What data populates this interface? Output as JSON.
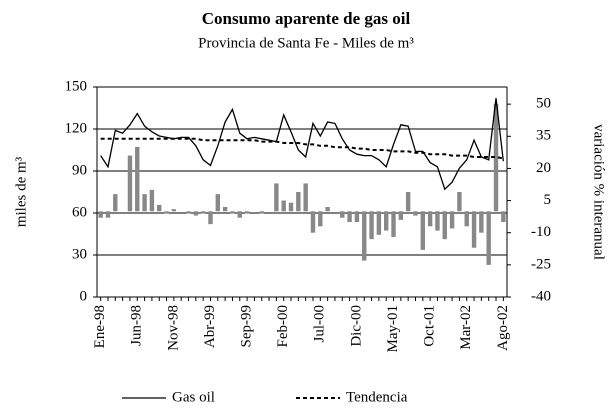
{
  "chart_data": {
    "type": "combo",
    "title": "Consumo aparente de gas oil",
    "subtitle": "Provincia de Santa Fe - Miles de m³",
    "y_label": "miles de m³",
    "y2_label": "variación % interanual",
    "categories": [
      "Ene-98",
      null,
      null,
      null,
      null,
      "Jun-98",
      null,
      null,
      null,
      null,
      "Nov-98",
      null,
      null,
      null,
      null,
      "Abr-99",
      null,
      null,
      null,
      null,
      "Sep-99",
      null,
      null,
      null,
      null,
      "Feb-00",
      null,
      null,
      null,
      null,
      "Jul-00",
      null,
      null,
      null,
      null,
      "Dic-00",
      null,
      null,
      null,
      null,
      "May-01",
      null,
      null,
      null,
      null,
      "Oct-01",
      null,
      null,
      null,
      null,
      "Mar-02",
      null,
      null,
      null,
      null,
      "Ago-02"
    ],
    "series": [
      {
        "name": "Gas oil",
        "kind": "line",
        "color": "#000000",
        "values": [
          101,
          93,
          119,
          117,
          123,
          131,
          122,
          118,
          115,
          114,
          113,
          114,
          114,
          108,
          98,
          94,
          108,
          125,
          134,
          117,
          113,
          114,
          113,
          112,
          111,
          130,
          118,
          105,
          100,
          124,
          115,
          125,
          124,
          113,
          105,
          102,
          101,
          101,
          98,
          93,
          109,
          123,
          122,
          104,
          104,
          96,
          93,
          77,
          82,
          92,
          98,
          112,
          100,
          98,
          142,
          97
        ]
      },
      {
        "name": "Tendencia",
        "kind": "dashed",
        "color": "#000000",
        "values": [
          113,
          113,
          113,
          113,
          113,
          113,
          113,
          113,
          113,
          113,
          113,
          113,
          113,
          113,
          112,
          112,
          112,
          112,
          112,
          112,
          112,
          112,
          111,
          111,
          111,
          110,
          110,
          110,
          109,
          109,
          108,
          108,
          107,
          107,
          107,
          106,
          106,
          105,
          105,
          105,
          104,
          104,
          104,
          103,
          103,
          102,
          102,
          102,
          101,
          101,
          101,
          100,
          100,
          100,
          100,
          99
        ]
      },
      {
        "kind": "bar",
        "axis": "y2",
        "color": "#888888",
        "values": [
          -3,
          -3,
          8,
          0,
          26,
          30,
          8,
          10,
          3,
          -1,
          1,
          0,
          -1,
          -2,
          -1,
          -6,
          8,
          2,
          -1,
          -3,
          -1,
          0,
          -1,
          0,
          13,
          5,
          4,
          9,
          13,
          -10,
          -7,
          2,
          0,
          -3,
          -5,
          -5,
          -23,
          -13,
          -11,
          -9,
          -12,
          -4,
          9,
          -2,
          -18,
          -7,
          -9,
          -13,
          -8,
          9,
          -7,
          -17,
          -10,
          -25,
          50,
          -5
        ]
      }
    ],
    "ylim": [
      0,
      150
    ],
    "yticks": [
      0,
      30,
      60,
      90,
      120,
      150
    ],
    "y2lim": [
      -40,
      58
    ],
    "y2ticks": [
      -40,
      -25,
      -10,
      5,
      20,
      35,
      50
    ],
    "grid": true
  }
}
